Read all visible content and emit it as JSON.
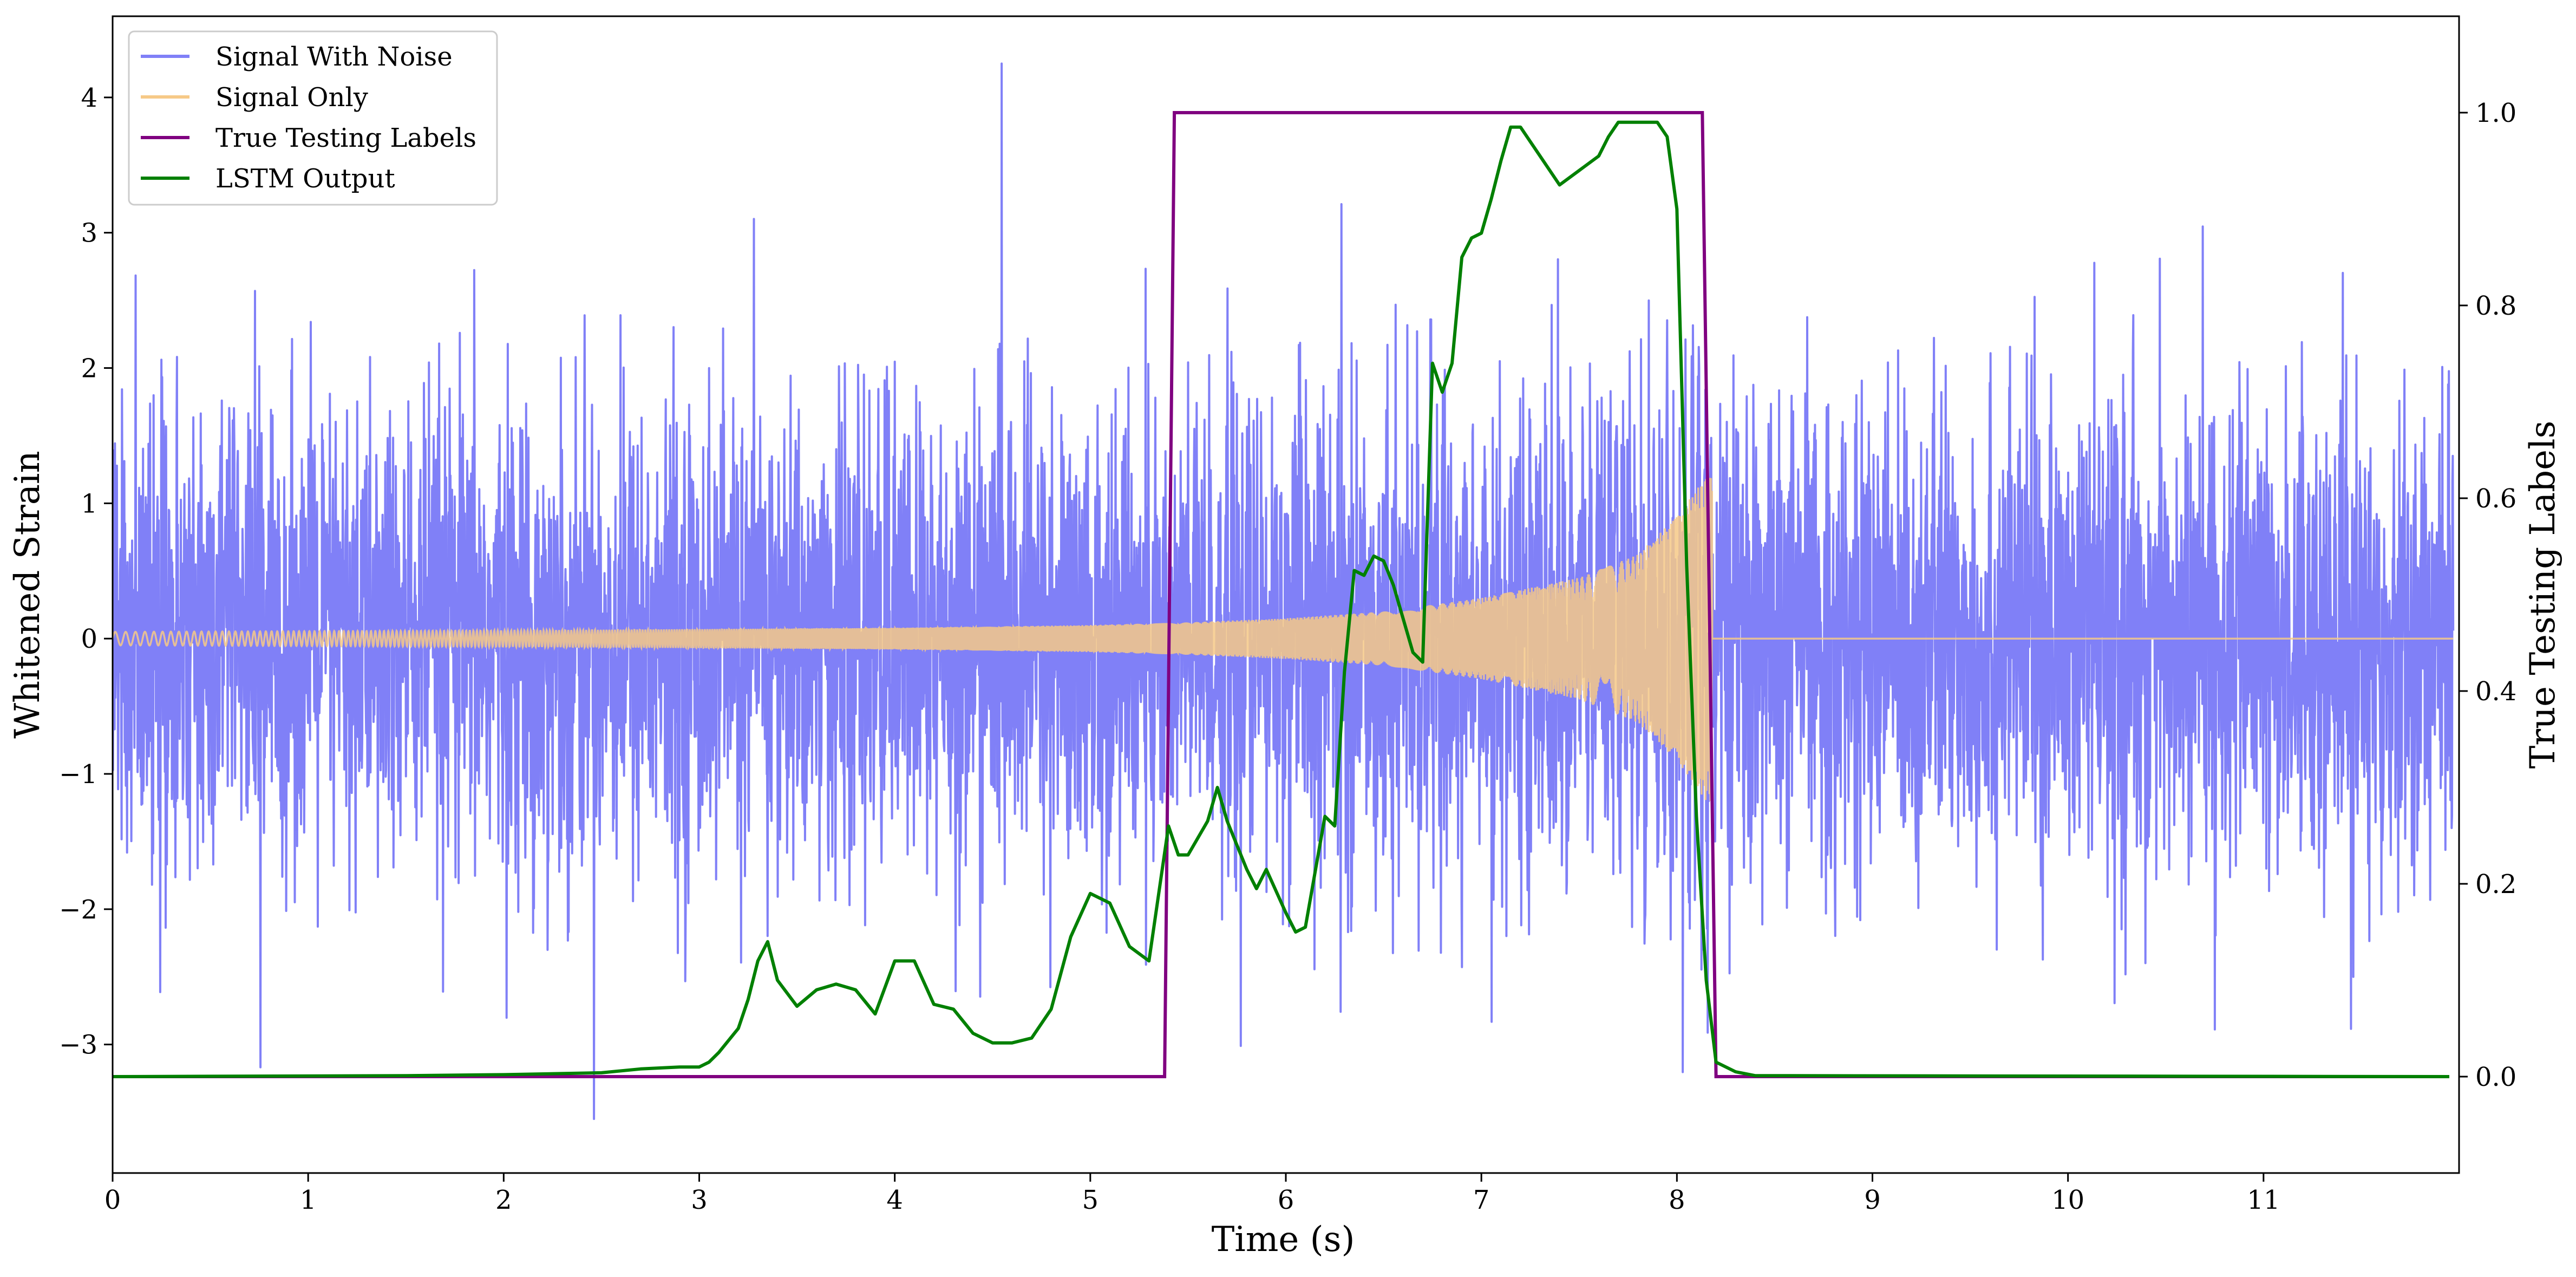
{
  "chart_data": {
    "type": "line",
    "xlabel": "Time (s)",
    "ylabel_left": "Whitened Strain",
    "ylabel_right": "True Testing Labels",
    "xlim": [
      0,
      12
    ],
    "ylim_left": [
      -3.95,
      4.6
    ],
    "ylim_right": [
      -0.1,
      1.1
    ],
    "x_ticks": [
      0,
      1,
      2,
      3,
      4,
      5,
      6,
      7,
      8,
      9,
      10,
      11
    ],
    "x_tick_labels": [
      "0",
      "1",
      "2",
      "3",
      "4",
      "5",
      "6",
      "7",
      "8",
      "9",
      "10",
      "11"
    ],
    "y_left_ticks": [
      -3,
      -2,
      -1,
      0,
      1,
      2,
      3,
      4
    ],
    "y_left_tick_labels": [
      "−3",
      "−2",
      "−1",
      "0",
      "1",
      "2",
      "3",
      "4"
    ],
    "y_right_ticks": [
      0.0,
      0.2,
      0.4,
      0.6,
      0.8,
      1.0
    ],
    "y_right_tick_labels": [
      "0.0",
      "0.2",
      "0.4",
      "0.6",
      "0.8",
      "1.0"
    ],
    "grid": false,
    "legend_position": "top-left",
    "series": [
      {
        "name": "Signal With Noise",
        "axis": "left",
        "color": "#8080f7",
        "description_values": {
          "noise_sigma": 0.85,
          "typical_peaks": [
            2.2,
            -2.3
          ],
          "extreme_max": 4.25,
          "extreme_min": -3.55
        }
      },
      {
        "name": "Signal Only",
        "axis": "left",
        "color": "#f6c987",
        "envelope": {
          "x": [
            0,
            1,
            2,
            3,
            4,
            5,
            5.5,
            6,
            6.5,
            7,
            7.5,
            7.8,
            8.0,
            8.1,
            8.15
          ],
          "amplitude": [
            0.05,
            0.055,
            0.06,
            0.07,
            0.08,
            0.1,
            0.12,
            0.15,
            0.2,
            0.3,
            0.45,
            0.62,
            0.9,
            1.1,
            1.2
          ]
        },
        "zero_after": 8.18
      },
      {
        "name": "True Testing Labels",
        "axis": "right",
        "color": "#800080",
        "x": [
          0,
          5.38,
          5.43,
          8.13,
          8.2,
          11.95
        ],
        "values": [
          0,
          0,
          1,
          1,
          0,
          0
        ]
      },
      {
        "name": "LSTM Output",
        "axis": "right",
        "color": "#008000",
        "x": [
          0,
          1.5,
          2.0,
          2.5,
          2.7,
          2.9,
          3.0,
          3.05,
          3.1,
          3.2,
          3.25,
          3.3,
          3.35,
          3.4,
          3.5,
          3.6,
          3.7,
          3.8,
          3.9,
          4.0,
          4.1,
          4.2,
          4.3,
          4.4,
          4.5,
          4.6,
          4.7,
          4.8,
          4.9,
          5.0,
          5.1,
          5.2,
          5.3,
          5.4,
          5.45,
          5.5,
          5.6,
          5.65,
          5.7,
          5.8,
          5.85,
          5.9,
          6.0,
          6.05,
          6.1,
          6.2,
          6.25,
          6.3,
          6.35,
          6.4,
          6.45,
          6.5,
          6.55,
          6.6,
          6.65,
          6.7,
          6.75,
          6.8,
          6.85,
          6.9,
          6.95,
          7.0,
          7.05,
          7.1,
          7.15,
          7.2,
          7.3,
          7.4,
          7.5,
          7.6,
          7.65,
          7.7,
          7.8,
          7.9,
          7.95,
          8.0,
          8.05,
          8.1,
          8.15,
          8.2,
          8.3,
          8.4,
          11.95
        ],
        "values": [
          0,
          0.001,
          0.002,
          0.004,
          0.008,
          0.01,
          0.01,
          0.015,
          0.025,
          0.05,
          0.08,
          0.12,
          0.14,
          0.1,
          0.073,
          0.09,
          0.096,
          0.09,
          0.065,
          0.12,
          0.12,
          0.075,
          0.07,
          0.045,
          0.035,
          0.035,
          0.04,
          0.07,
          0.145,
          0.19,
          0.18,
          0.135,
          0.12,
          0.26,
          0.23,
          0.23,
          0.265,
          0.3,
          0.265,
          0.215,
          0.195,
          0.215,
          0.17,
          0.15,
          0.155,
          0.27,
          0.26,
          0.42,
          0.525,
          0.52,
          0.54,
          0.535,
          0.51,
          0.475,
          0.44,
          0.43,
          0.74,
          0.71,
          0.74,
          0.85,
          0.87,
          0.875,
          0.91,
          0.95,
          0.985,
          0.985,
          0.955,
          0.925,
          0.94,
          0.955,
          0.975,
          0.99,
          0.99,
          0.99,
          0.975,
          0.9,
          0.53,
          0.27,
          0.1,
          0.015,
          0.005,
          0.001,
          0.0
        ]
      }
    ]
  }
}
